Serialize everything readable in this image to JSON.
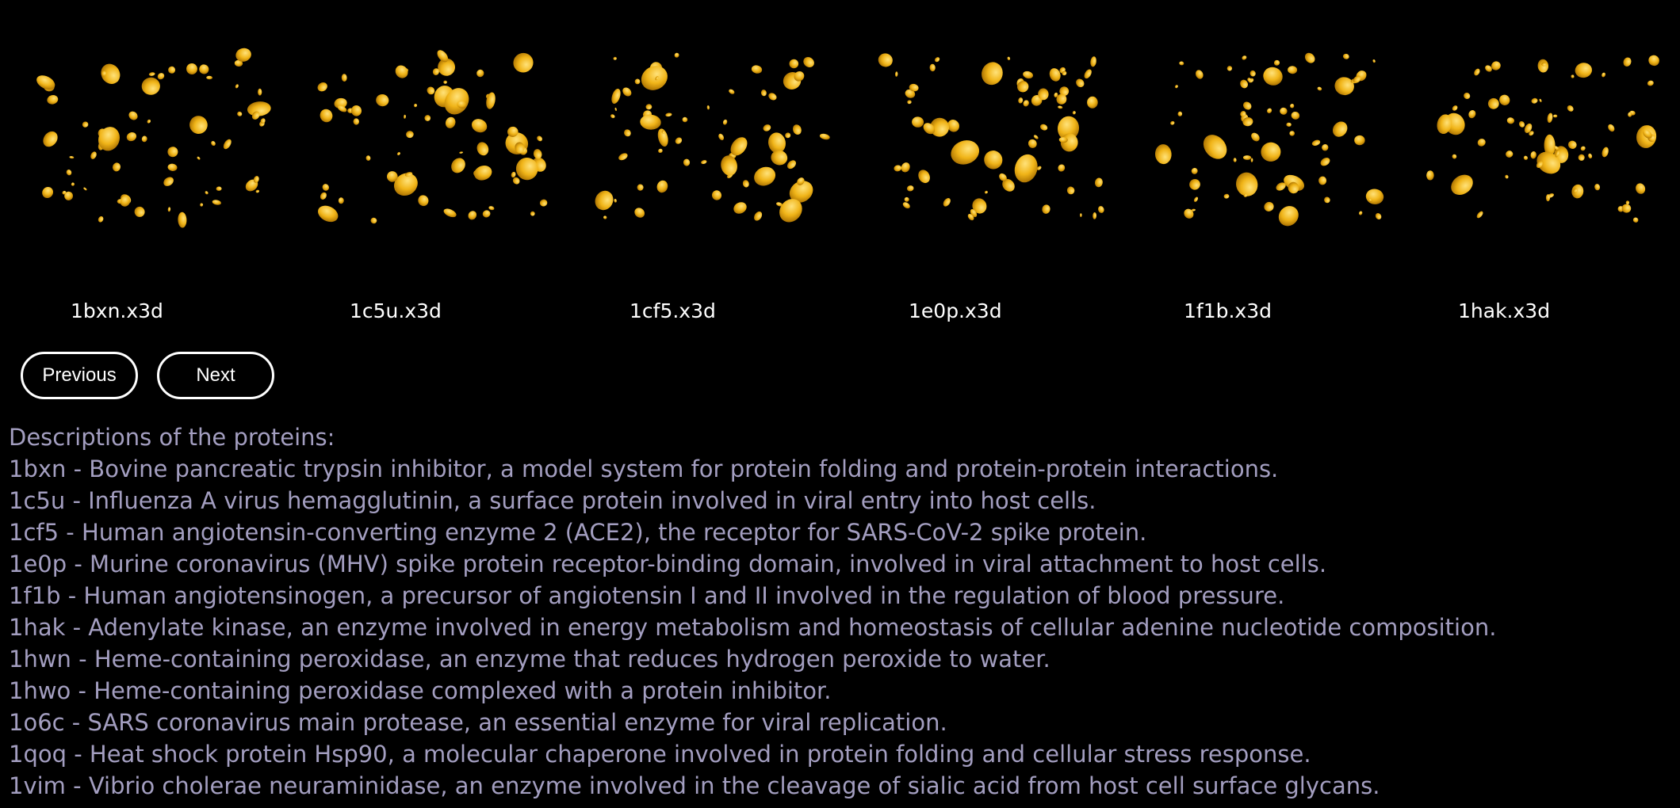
{
  "gallery": {
    "items": [
      {
        "caption": "1bxn.x3d"
      },
      {
        "caption": "1c5u.x3d"
      },
      {
        "caption": "1cf5.x3d"
      },
      {
        "caption": "1e0p.x3d"
      },
      {
        "caption": "1f1b.x3d"
      },
      {
        "caption": "1hak.x3d"
      }
    ],
    "blob_color": "#f0b418"
  },
  "nav": {
    "previous_label": "Previous",
    "next_label": "Next"
  },
  "descriptions": {
    "heading": "Descriptions of the proteins:",
    "lines": [
      "1bxn - Bovine pancreatic trypsin inhibitor, a model system for protein folding and protein-protein interactions.",
      "1c5u - Influenza A virus hemagglutinin, a surface protein involved in viral entry into host cells.",
      "1cf5 - Human angiotensin-converting enzyme 2 (ACE2), the receptor for SARS-CoV-2 spike protein.",
      "1e0p - Murine coronavirus (MHV) spike protein receptor-binding domain, involved in viral attachment to host cells.",
      "1f1b - Human angiotensinogen, a precursor of angiotensin I and II involved in the regulation of blood pressure.",
      "1hak - Adenylate kinase, an enzyme involved in energy metabolism and homeostasis of cellular adenine nucleotide composition.",
      "1hwn - Heme-containing peroxidase, an enzyme that reduces hydrogen peroxide to water.",
      "1hwo - Heme-containing peroxidase complexed with a protein inhibitor.",
      "1o6c - SARS coronavirus main protease, an essential enzyme for viral replication.",
      "1qoq - Heat shock protein Hsp90, a molecular chaperone involved in protein folding and cellular stress response.",
      "1vim - Vibrio cholerae neuraminidase, an enzyme involved in the cleavage of sialic acid from host cell surface glycans."
    ]
  }
}
